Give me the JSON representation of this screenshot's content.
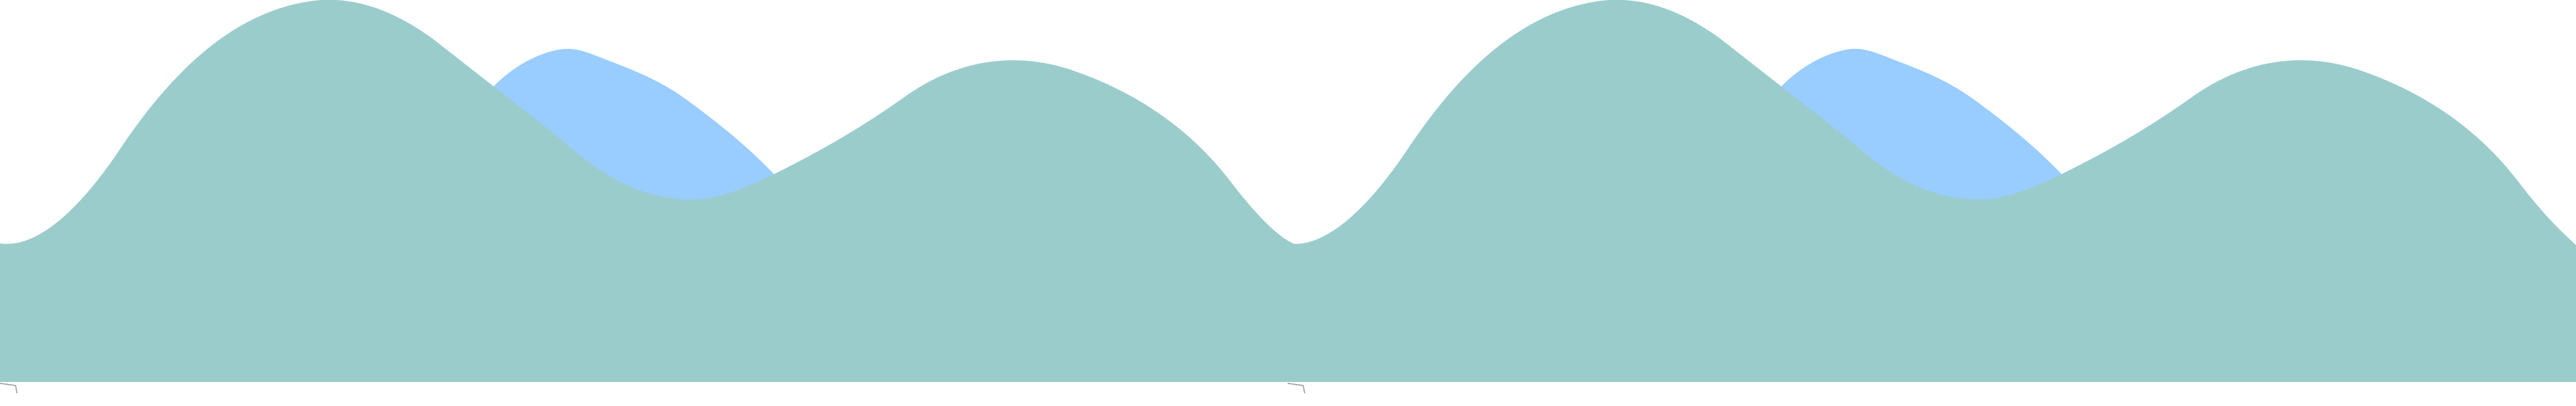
{
  "colors": {
    "background": "#ffffff",
    "front_hills": "#9bcccc",
    "back_hills": "#99ccff"
  },
  "layers": [
    {
      "name": "back-hills",
      "fill_key": "back_hills"
    },
    {
      "name": "front-hills",
      "fill_key": "front_hills"
    }
  ]
}
